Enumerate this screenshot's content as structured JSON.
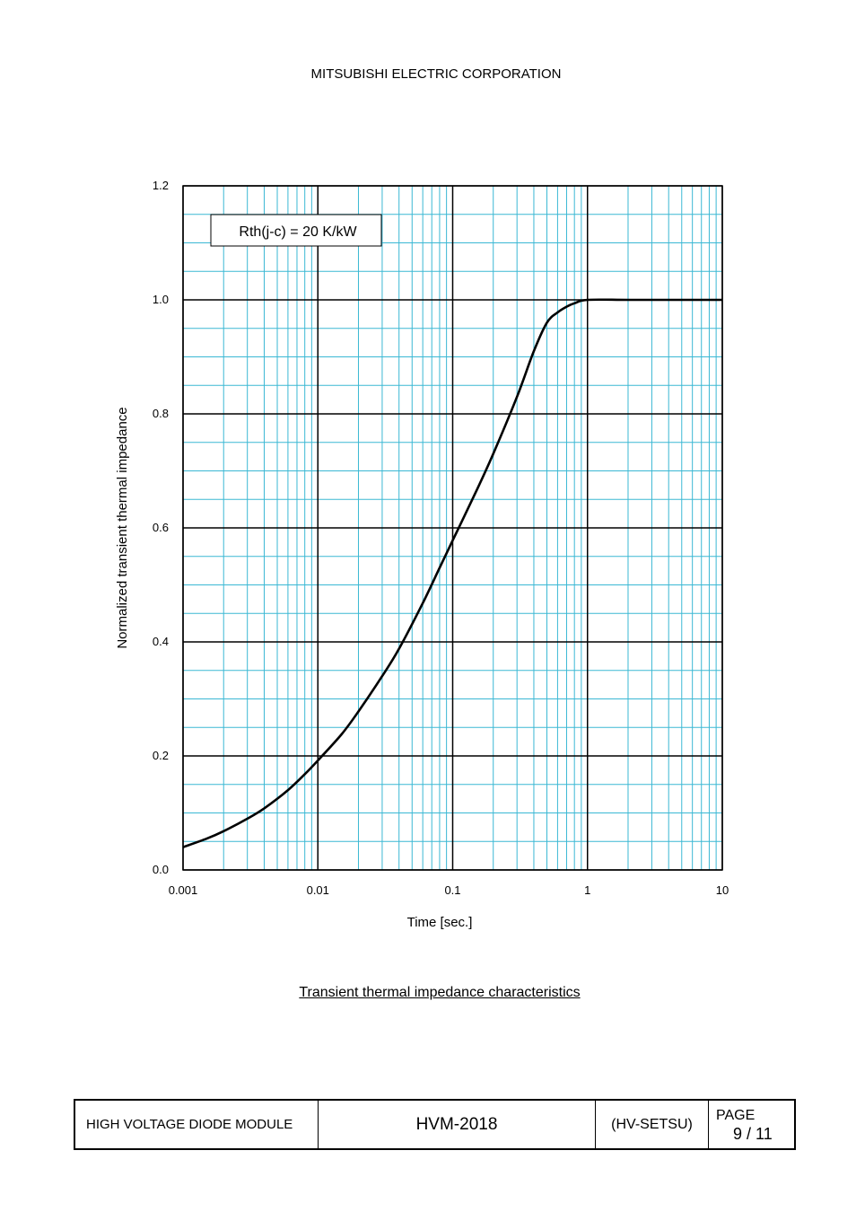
{
  "header": {
    "company": "MITSUBISHI ELECTRIC CORPORATION"
  },
  "chart_data": {
    "type": "line",
    "title": "",
    "annotation": "Rth(j-c) = 20 K/kW",
    "xlabel": "Time [sec.]",
    "ylabel": "Normalized transient thermal impedance",
    "xscale": "log",
    "xlim": [
      0.001,
      10
    ],
    "ylim": [
      0.0,
      1.2
    ],
    "x_ticks": [
      "0.001",
      "0.01",
      "0.1",
      "1",
      "10"
    ],
    "y_ticks": [
      "0.0",
      "0.2",
      "0.4",
      "0.6",
      "0.8",
      "1.0",
      "1.2"
    ],
    "grid": true,
    "series": [
      {
        "color": "#000000",
        "x": [
          0.001,
          0.0015,
          0.002,
          0.003,
          0.004,
          0.006,
          0.008,
          0.01,
          0.015,
          0.02,
          0.03,
          0.04,
          0.06,
          0.08,
          0.1,
          0.15,
          0.2,
          0.3,
          0.4,
          0.5,
          0.6,
          0.7,
          0.8,
          1,
          2,
          5,
          10
        ],
        "y": [
          0.04,
          0.055,
          0.068,
          0.09,
          0.108,
          0.14,
          0.168,
          0.192,
          0.238,
          0.278,
          0.34,
          0.388,
          0.468,
          0.53,
          0.578,
          0.665,
          0.73,
          0.83,
          0.91,
          0.96,
          0.978,
          0.988,
          0.994,
          1.0,
          1.0,
          1.0,
          1.0
        ]
      }
    ]
  },
  "caption": "Transient thermal impedance characteristics",
  "footer": {
    "product": "HIGH VOLTAGE DIODE MODULE",
    "model": "HVM-2018",
    "code": "(HV-SETSU)",
    "page_label": "PAGE",
    "page_number": "9 / 11"
  },
  "colors": {
    "grid_minor": "#3bb8d4",
    "grid_major": "#000000",
    "curve": "#000000"
  }
}
